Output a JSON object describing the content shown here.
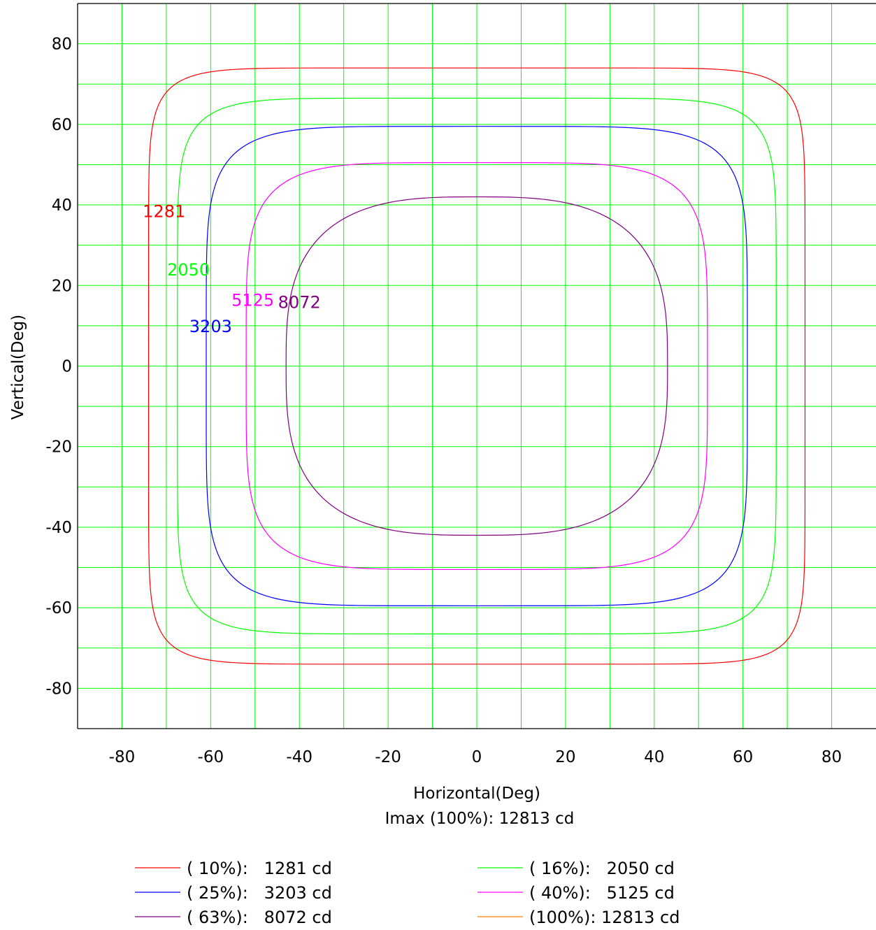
{
  "chart_data": {
    "type": "line",
    "xlabel": "Horizontal(Deg)",
    "ylabel": "Vertical(Deg)",
    "subtitle": "Imax (100%): 12813 cd",
    "xlim": [
      -90,
      90
    ],
    "ylim": [
      -90,
      90
    ],
    "xticks": [
      -80,
      -60,
      -40,
      -20,
      0,
      20,
      40,
      60,
      80
    ],
    "yticks": [
      80,
      60,
      40,
      20,
      0,
      -20,
      -40,
      -60,
      -80
    ],
    "xtick_labels": [
      "-80",
      "-60",
      "-40",
      "-20",
      "0",
      "20",
      "40",
      "60",
      "80"
    ],
    "ytick_labels": [
      "80",
      "60",
      "40",
      "20",
      "0",
      "-20",
      "-40",
      "-60",
      "-80"
    ],
    "grid": true,
    "grid_step": 10,
    "grid_color": "#00ff00",
    "legend_position": "bottom",
    "series": [
      {
        "label": "1281",
        "legend": "( 10%):   1281 cd",
        "color": "#ff0000",
        "rx": 74,
        "ry": 74,
        "n": 10,
        "label_at": [
          -70.5,
          38.5
        ]
      },
      {
        "label": "2050",
        "legend": "( 16%):   2050 cd",
        "color": "#00ff00",
        "rx": 67.5,
        "ry": 66.5,
        "n": 8,
        "label_at": [
          -65,
          24
        ]
      },
      {
        "label": "3203",
        "legend": "( 25%):   3203 cd",
        "color": "#0000ff",
        "rx": 61,
        "ry": 59.5,
        "n": 6,
        "label_at": [
          -60,
          10
        ]
      },
      {
        "label": "5125",
        "legend": "( 40%):   5125 cd",
        "color": "#ff00ff",
        "rx": 52,
        "ry": 50.5,
        "n": 5,
        "label_at": [
          -50.5,
          16.5
        ]
      },
      {
        "label": "8072",
        "legend": "( 63%):   8072 cd",
        "color": "#800080",
        "rx": 43,
        "ry": 42,
        "n": 3,
        "label_at": [
          -40,
          16
        ]
      },
      {
        "label": "12813",
        "legend": "(100%): 12813 cd",
        "color": "#ff8000",
        "rx": 0,
        "ry": 0,
        "n": 2,
        "label_at": null
      }
    ]
  }
}
